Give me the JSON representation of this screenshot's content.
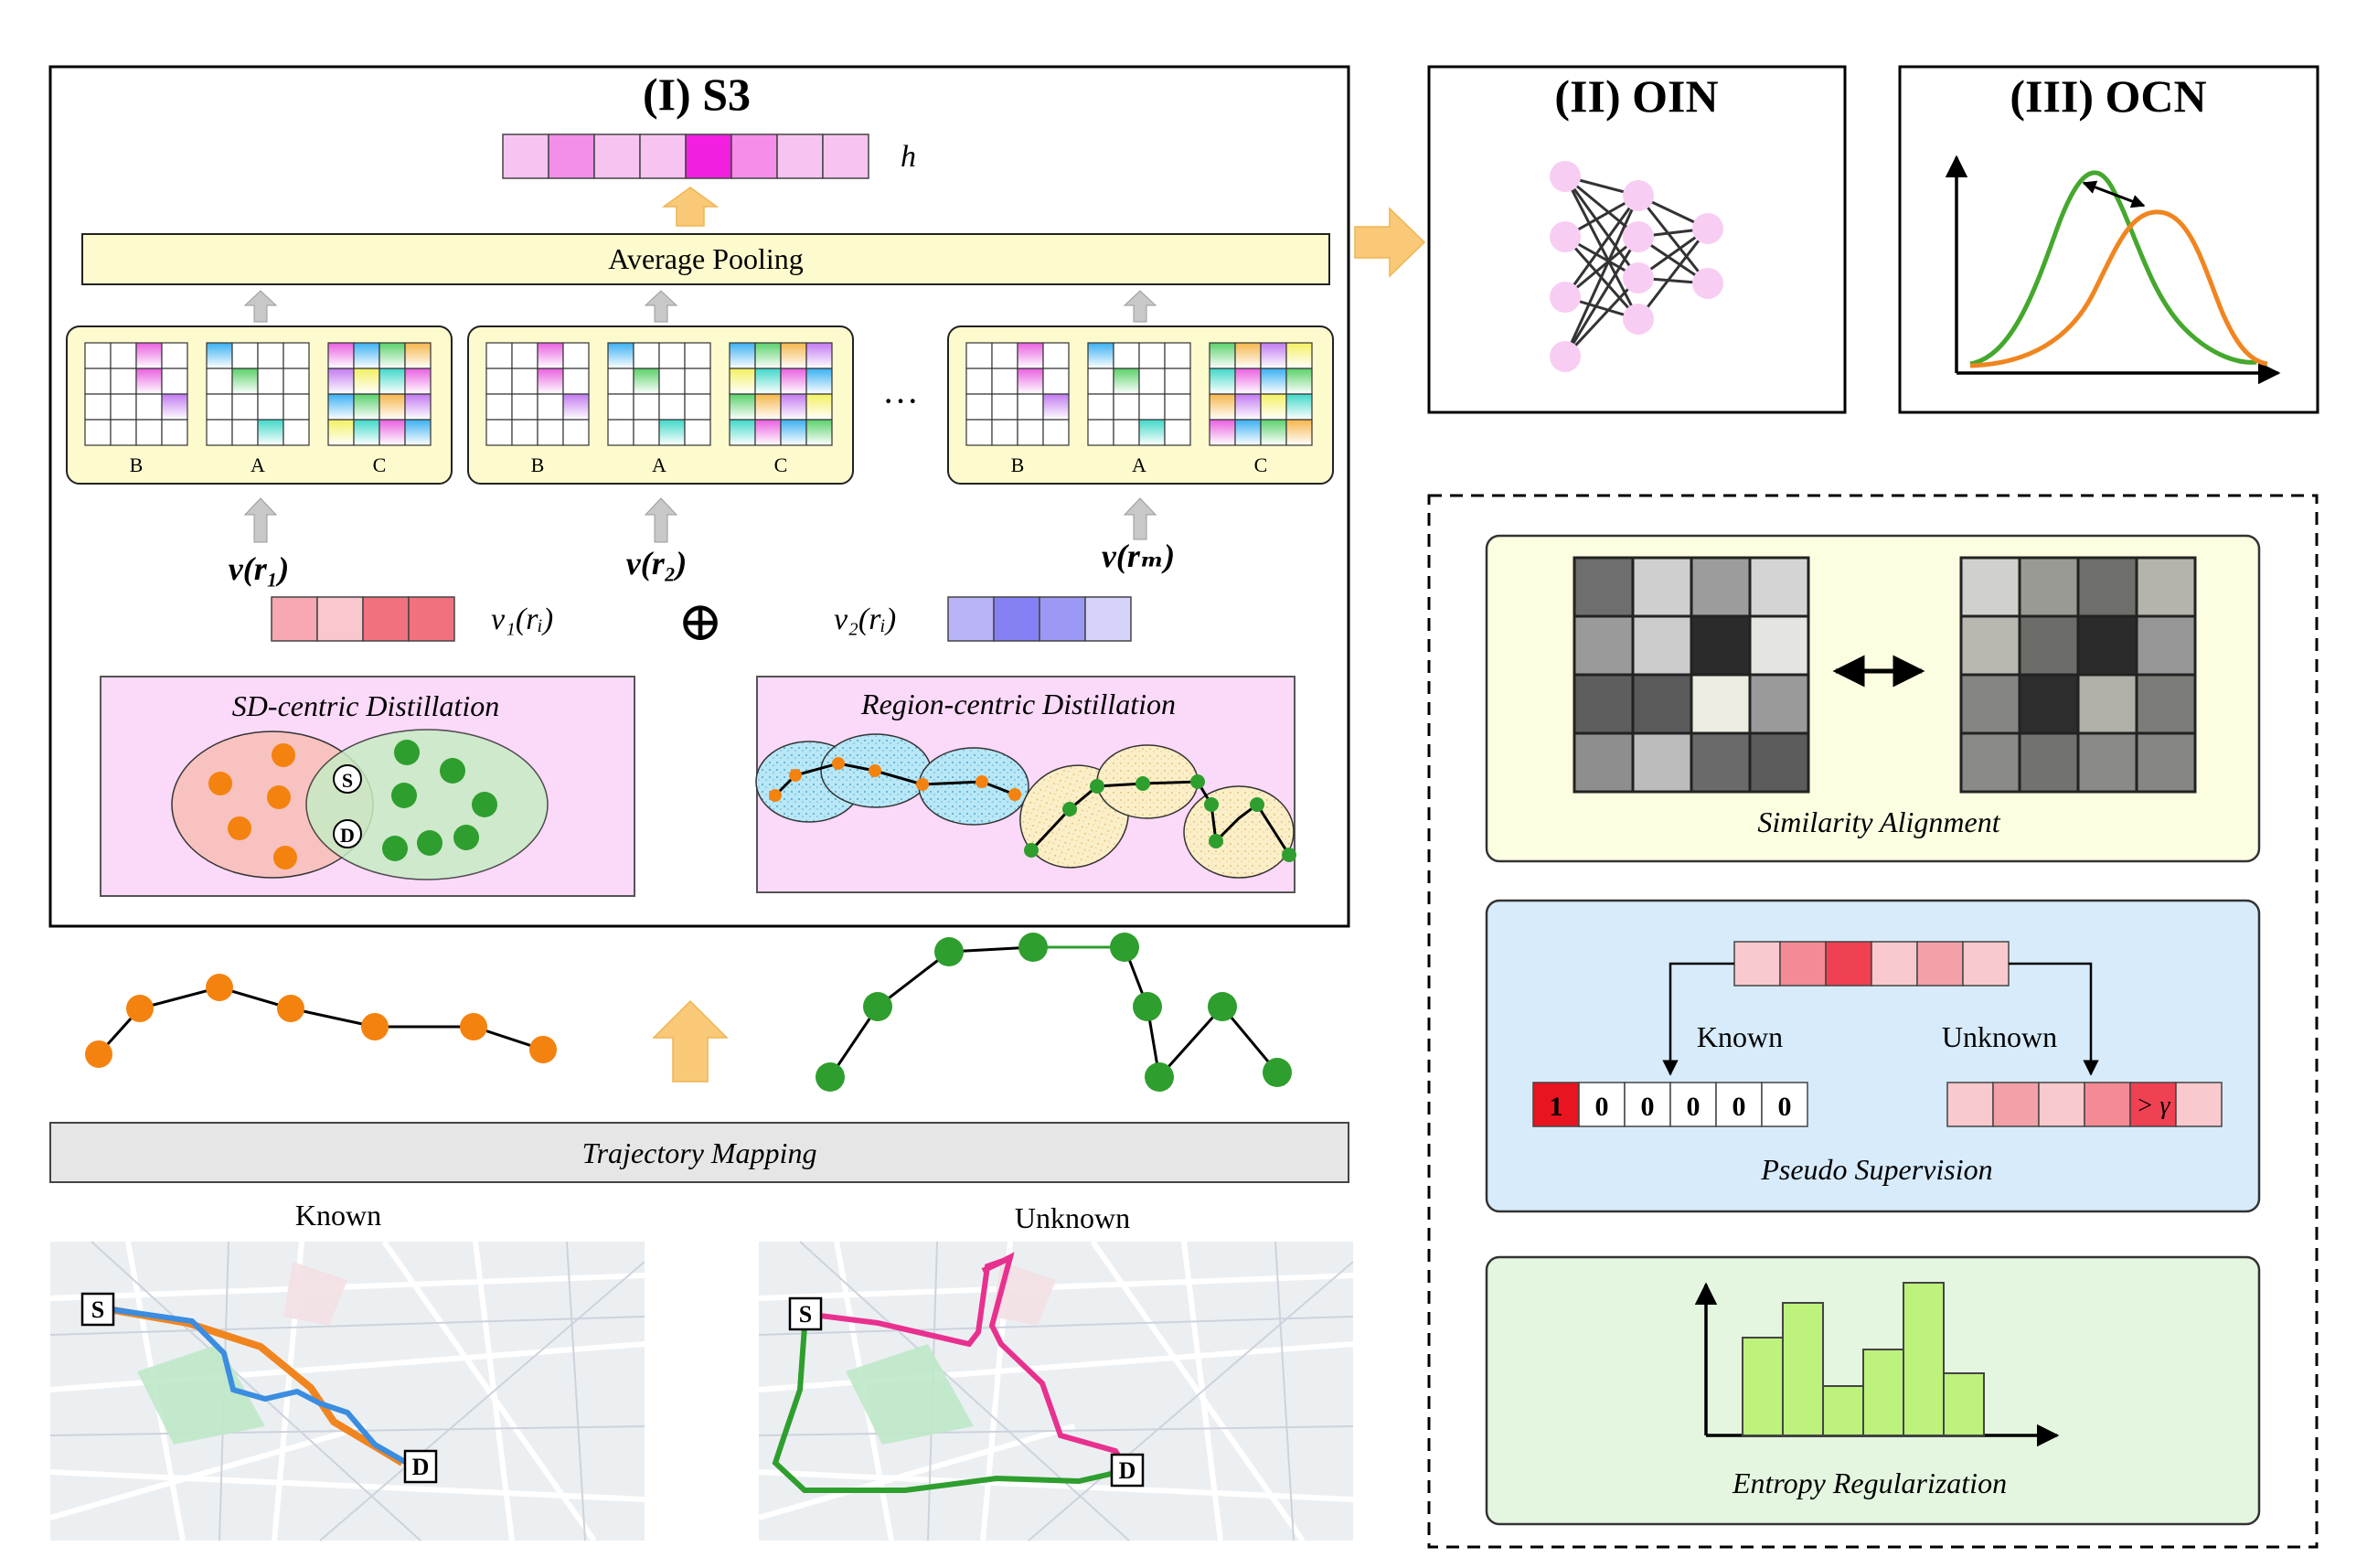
{
  "s3": {
    "title": "(I) S3",
    "h_label": "h",
    "pooling_label": "Average Pooling",
    "grid_labels": [
      "B",
      "A",
      "C"
    ],
    "ellipsis": "···",
    "vr1": "v(r₁)",
    "vr2": "v(r₂)",
    "vrm": "v(rₘ)",
    "v1": "v₁(rᵢ)",
    "v2": "v₂(rᵢ)",
    "oplus": "⊕",
    "sd_title": "SD-centric Distillation",
    "sd_s": "S",
    "sd_d": "D",
    "region_title": "Region-centric Distillation"
  },
  "oin": {
    "title": "(II) OIN"
  },
  "ocn": {
    "title": "(III) OCN"
  },
  "mapping": {
    "label": "Trajectory Mapping"
  },
  "maps": {
    "known_label": "Known",
    "unknown_label": "Unknown",
    "start_marker": "S",
    "end_marker": "D"
  },
  "similarity": {
    "label": "Similarity Alignment"
  },
  "pseudo": {
    "known_label": "Known",
    "unknown_label": "Unknown",
    "onehot": [
      "1",
      "0",
      "0",
      "0",
      "0",
      "0"
    ],
    "threshold": "> γ",
    "label": "Pseudo Supervision"
  },
  "entropy": {
    "label": "Entropy Regularization"
  },
  "colors": {
    "orange": "#f4820f",
    "green": "#2e9e2e",
    "blue": "#3a8de0",
    "magenta": "#e8318f",
    "yellow_fill": "#fdfacd",
    "pink_fill": "#fbd9f8",
    "blue_fill": "#d7ebfb",
    "arrow_orange": "#f9c978"
  }
}
